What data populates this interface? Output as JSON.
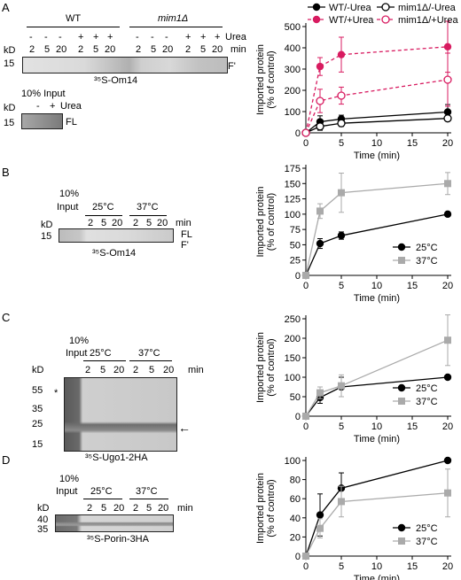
{
  "panel_labels": [
    "A",
    "B",
    "C",
    "D"
  ],
  "blots": {
    "A": {
      "groups": [
        "WT",
        "mim1Δ"
      ],
      "kd_label": "kD",
      "urea_label": "Urea",
      "min_label": "min",
      "urea_row": [
        "-",
        "-",
        "-",
        "+",
        "+",
        "+",
        "-",
        "-",
        "-",
        "+",
        "+",
        "+"
      ],
      "min_row": [
        "2",
        "5",
        "20",
        "2",
        "5",
        "20",
        "2",
        "5",
        "20",
        "2",
        "5",
        "20"
      ],
      "marker": "15",
      "band_label": "F'",
      "caption": "³⁵S-Om14",
      "input": {
        "title": "10% Input",
        "signs": [
          "-",
          "+"
        ],
        "urea_label": "Urea",
        "kd_label": "kD",
        "marker": "15",
        "band_label": "FL"
      }
    },
    "B": {
      "input_label": [
        "10%",
        "Input"
      ],
      "temps": [
        "25°C",
        "37°C"
      ],
      "min_row": [
        "2",
        "5",
        "20",
        "2",
        "5",
        "20"
      ],
      "min_label": "min",
      "kd_label": "kD",
      "marker": "15",
      "band_labels": [
        "FL",
        "F'"
      ],
      "caption": "³⁵S-Om14"
    },
    "C": {
      "input_label": [
        "10%",
        "Input"
      ],
      "temps": [
        "25°C",
        "37°C"
      ],
      "min_row": [
        "2",
        "5",
        "20",
        "2",
        "5",
        "20"
      ],
      "min_label": "min",
      "kd_label": "kD",
      "markers": [
        "55",
        "35",
        "25",
        "15"
      ],
      "star": "*",
      "arrow": "←",
      "caption": "³⁵S-Ugo1-2HA"
    },
    "D": {
      "input_label": [
        "10%",
        "Input"
      ],
      "temps": [
        "25°C",
        "37°C"
      ],
      "min_row": [
        "2",
        "5",
        "20",
        "2",
        "5",
        "20"
      ],
      "min_label": "min",
      "kd_label": "kD",
      "markers": [
        "40",
        "35"
      ],
      "caption": "³⁵S-Porin-3HA"
    }
  },
  "chart_data": [
    {
      "id": "A",
      "type": "line",
      "xlabel": "Time (min)",
      "ylabel": "Imported protein (% of control)",
      "xlim": [
        0,
        20
      ],
      "ylim": [
        0,
        500
      ],
      "xticks": [
        0,
        5,
        10,
        15,
        20
      ],
      "yticks": [
        0,
        100,
        200,
        300,
        400,
        500
      ],
      "legend": "top",
      "series": [
        {
          "name": "WT/-Urea",
          "color": "#000000",
          "marker": "filled-circle",
          "dashed": false,
          "x": [
            0,
            2,
            5,
            20
          ],
          "y": [
            0,
            52,
            65,
            98
          ],
          "err": [
            0,
            28,
            18,
            35
          ]
        },
        {
          "name": "mim1Δ/-Urea",
          "color": "#000000",
          "marker": "open-circle",
          "dashed": false,
          "x": [
            0,
            2,
            5,
            20
          ],
          "y": [
            0,
            30,
            45,
            68
          ],
          "err": [
            0,
            18,
            15,
            12
          ]
        },
        {
          "name": "WT/+Urea",
          "color": "#d81b60",
          "marker": "filled-circle",
          "dashed": true,
          "x": [
            0,
            2,
            5,
            20
          ],
          "y": [
            0,
            312,
            368,
            405
          ],
          "err": [
            0,
            42,
            82,
            120
          ]
        },
        {
          "name": "mim1Δ/+Urea",
          "color": "#d81b60",
          "marker": "open-circle",
          "dashed": true,
          "x": [
            0,
            2,
            5,
            20
          ],
          "y": [
            0,
            150,
            175,
            250
          ],
          "err": [
            0,
            55,
            40,
            125
          ]
        }
      ]
    },
    {
      "id": "B",
      "type": "line",
      "xlabel": "Time (min)",
      "ylabel": "Imported protein (% of control)",
      "xlim": [
        0,
        20
      ],
      "ylim": [
        0,
        175
      ],
      "xticks": [
        0,
        5,
        10,
        15,
        20
      ],
      "yticks": [
        0,
        25,
        50,
        75,
        100,
        125,
        150,
        175
      ],
      "legend": "bottom-right",
      "series": [
        {
          "name": "25°C",
          "color": "#000000",
          "marker": "filled-circle",
          "x": [
            0,
            2,
            5,
            20
          ],
          "y": [
            0,
            52,
            65,
            100
          ],
          "err": [
            0,
            8,
            6,
            0
          ]
        },
        {
          "name": "37°C",
          "color": "#aaaaaa",
          "marker": "filled-square",
          "x": [
            0,
            2,
            5,
            20
          ],
          "y": [
            0,
            105,
            135,
            150
          ],
          "err": [
            0,
            12,
            32,
            18
          ]
        }
      ]
    },
    {
      "id": "C",
      "type": "line",
      "xlabel": "Time (min)",
      "ylabel": "Imported protein (% of control)",
      "xlim": [
        0,
        20
      ],
      "ylim": [
        0,
        250
      ],
      "xticks": [
        0,
        5,
        10,
        15,
        20
      ],
      "yticks": [
        0,
        50,
        100,
        150,
        200,
        250
      ],
      "legend": "bottom-right",
      "series": [
        {
          "name": "25°C",
          "color": "#000000",
          "marker": "filled-circle",
          "x": [
            0,
            2,
            5,
            20
          ],
          "y": [
            0,
            48,
            75,
            100
          ],
          "err": [
            0,
            15,
            25,
            0
          ]
        },
        {
          "name": "37°C",
          "color": "#aaaaaa",
          "marker": "filled-square",
          "x": [
            0,
            2,
            5,
            20
          ],
          "y": [
            0,
            60,
            78,
            195
          ],
          "err": [
            0,
            15,
            28,
            65
          ]
        }
      ]
    },
    {
      "id": "D",
      "type": "line",
      "xlabel": "Time (min)",
      "ylabel": "Imported protein (% of control)",
      "xlim": [
        0,
        20
      ],
      "ylim": [
        0,
        100
      ],
      "xticks": [
        0,
        5,
        10,
        15,
        20
      ],
      "yticks": [
        0,
        20,
        40,
        60,
        80,
        100
      ],
      "legend": "bottom-right",
      "series": [
        {
          "name": "25°C",
          "color": "#000000",
          "marker": "filled-circle",
          "x": [
            0,
            2,
            5,
            20
          ],
          "y": [
            0,
            43,
            71,
            100
          ],
          "err": [
            0,
            22,
            16,
            0
          ]
        },
        {
          "name": "37°C",
          "color": "#aaaaaa",
          "marker": "filled-square",
          "x": [
            0,
            2,
            5,
            20
          ],
          "y": [
            0,
            29,
            57,
            66
          ],
          "err": [
            0,
            10,
            16,
            25
          ]
        }
      ]
    }
  ]
}
